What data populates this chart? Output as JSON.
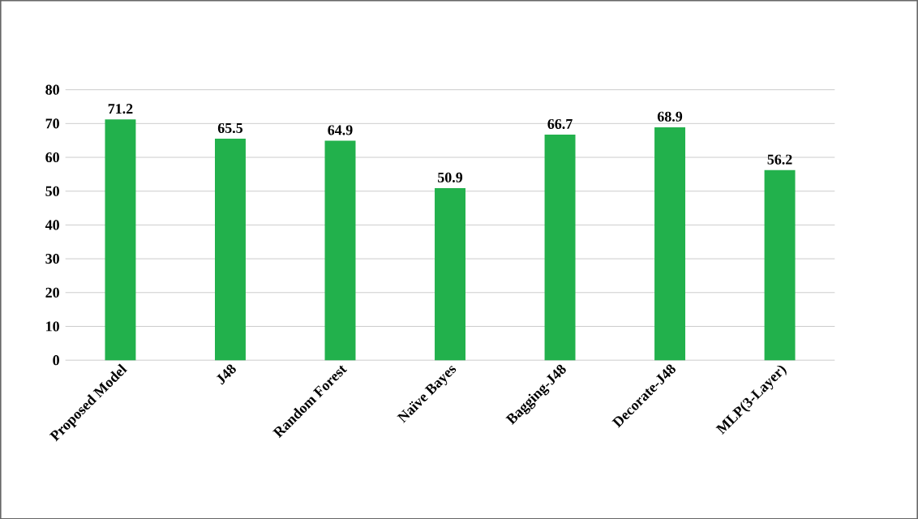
{
  "chart_data": {
    "type": "bar",
    "categories": [
      "Proposed Model",
      "J48",
      "Random Forest",
      "Naïve Bayes",
      "Bagging-J48",
      "Decorate-J48",
      "MLP(3-Layer)"
    ],
    "values": [
      71.2,
      65.5,
      64.9,
      50.9,
      66.7,
      68.9,
      56.2
    ],
    "color": "#22b14c",
    "ylim": [
      0,
      80
    ],
    "yticks": [
      0,
      10,
      20,
      30,
      40,
      50,
      60,
      70,
      80
    ],
    "grid": "y",
    "data_labels": true
  }
}
